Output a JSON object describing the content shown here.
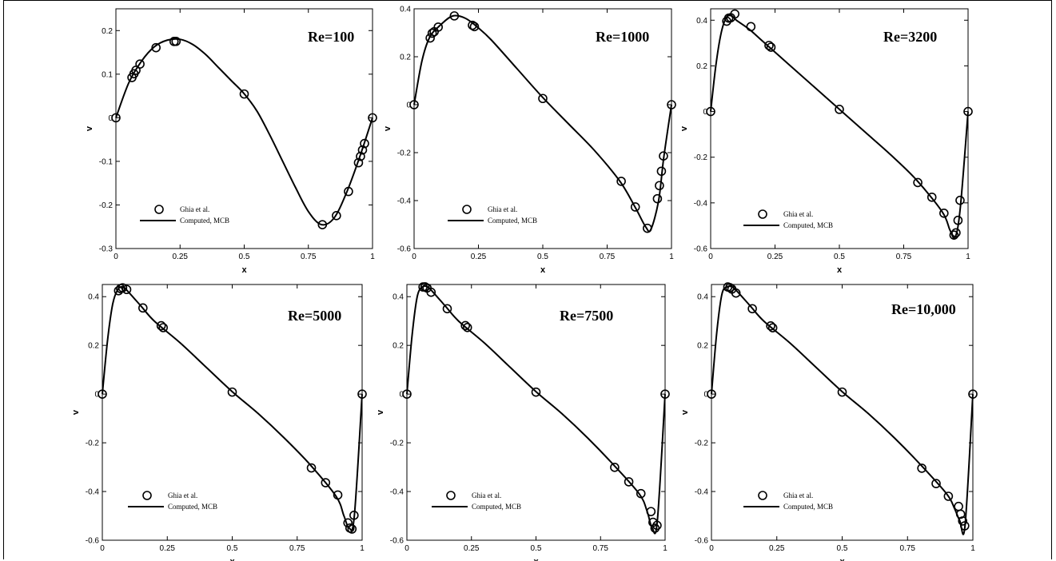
{
  "chart_data": [
    {
      "type": "line",
      "title": "Re=100",
      "xlabel": "x",
      "ylabel": "v",
      "xlim": [
        0,
        1
      ],
      "ylim": [
        -0.3,
        0.25
      ],
      "xticks": [
        0,
        0.25,
        0.5,
        0.75,
        1
      ],
      "xtick_labels": [
        "0",
        "0.25",
        "0.5",
        "0.75",
        "1"
      ],
      "yticks": [
        -0.3,
        -0.2,
        -0.1,
        0,
        0.1,
        0.2
      ],
      "ytick_labels": [
        "-0.3",
        "-0.2",
        "-0.1",
        "0",
        "0.1",
        "0.2"
      ],
      "legend": [
        "Ghia et al.",
        "Computed, MCB"
      ],
      "legend_position": "bottom-left",
      "series": [
        {
          "name": "Ghia et al.",
          "style": "markers",
          "x": [
            0,
            0.0625,
            0.0703,
            0.0781,
            0.0938,
            0.1563,
            0.2266,
            0.2344,
            0.5,
            0.8047,
            0.8594,
            0.9063,
            0.9453,
            0.9531,
            0.9609,
            0.9688,
            1.0
          ],
          "y": [
            0,
            0.0923,
            0.1009,
            0.1089,
            0.1232,
            0.1608,
            0.1751,
            0.1753,
            0.0545,
            -0.2453,
            -0.2245,
            -0.1691,
            -0.1031,
            -0.0886,
            -0.0739,
            -0.0591,
            0
          ]
        },
        {
          "name": "Computed, MCB",
          "style": "line",
          "x": [
            0,
            0.05,
            0.1,
            0.15,
            0.2,
            0.25,
            0.3,
            0.35,
            0.4,
            0.45,
            0.5,
            0.55,
            0.6,
            0.65,
            0.7,
            0.75,
            0.8,
            0.85,
            0.9,
            0.95,
            1.0
          ],
          "y": [
            0,
            0.08,
            0.13,
            0.163,
            0.178,
            0.18,
            0.168,
            0.145,
            0.115,
            0.085,
            0.055,
            0.015,
            -0.04,
            -0.1,
            -0.16,
            -0.215,
            -0.245,
            -0.23,
            -0.17,
            -0.09,
            0
          ]
        }
      ]
    },
    {
      "type": "line",
      "title": "Re=1000",
      "xlabel": "x",
      "ylabel": "v",
      "xlim": [
        0,
        1
      ],
      "ylim": [
        -0.6,
        0.4
      ],
      "xticks": [
        0,
        0.25,
        0.5,
        0.75,
        1
      ],
      "xtick_labels": [
        "0",
        "0.25",
        "0.5",
        "0.75",
        "1"
      ],
      "yticks": [
        -0.6,
        -0.4,
        -0.2,
        0,
        0.2,
        0.4
      ],
      "ytick_labels": [
        "-0.6",
        "-0.4",
        "-0.2",
        "0",
        "0.2",
        "0.4"
      ],
      "legend": [
        "Ghia et al.",
        "Computed, MCB"
      ],
      "legend_position": "bottom-left",
      "series": [
        {
          "name": "Ghia et al.",
          "style": "markers",
          "x": [
            0,
            0.0625,
            0.0703,
            0.0781,
            0.0938,
            0.1563,
            0.2266,
            0.2344,
            0.5,
            0.8047,
            0.8594,
            0.9063,
            0.9453,
            0.9531,
            0.9609,
            0.9688,
            1.0
          ],
          "y": [
            0,
            0.2781,
            0.2981,
            0.3044,
            0.3237,
            0.3704,
            0.3312,
            0.3257,
            0.0258,
            -0.3197,
            -0.4266,
            -0.5155,
            -0.3922,
            -0.3375,
            -0.2776,
            -0.214,
            0
          ]
        },
        {
          "name": "Computed, MCB",
          "style": "line",
          "x": [
            0,
            0.03,
            0.06,
            0.1,
            0.15,
            0.2,
            0.25,
            0.3,
            0.4,
            0.5,
            0.6,
            0.7,
            0.8,
            0.86,
            0.9,
            0.92,
            0.95,
            0.97,
            1.0
          ],
          "y": [
            0,
            0.18,
            0.28,
            0.33,
            0.37,
            0.36,
            0.32,
            0.27,
            0.15,
            0.03,
            -0.08,
            -0.19,
            -0.32,
            -0.43,
            -0.51,
            -0.52,
            -0.4,
            -0.22,
            0
          ]
        }
      ]
    },
    {
      "type": "line",
      "title": "Re=3200",
      "xlabel": "x",
      "ylabel": "v",
      "xlim": [
        0,
        1
      ],
      "ylim": [
        -0.6,
        0.45
      ],
      "xticks": [
        0,
        0.25,
        0.5,
        0.75,
        1
      ],
      "xtick_labels": [
        "0",
        "0.25",
        "0.5",
        "0.75",
        "1"
      ],
      "yticks": [
        -0.6,
        -0.4,
        -0.2,
        0,
        0.2,
        0.4
      ],
      "ytick_labels": [
        "-0.6",
        "-0.4",
        "-0.2",
        "0",
        "0.2",
        "0.4"
      ],
      "legend": [
        "Ghia et al.",
        "Computed, MCB"
      ],
      "legend_position": "bottom-left",
      "series": [
        {
          "name": "Ghia et al.",
          "style": "markers",
          "x": [
            0,
            0.0625,
            0.0703,
            0.0781,
            0.0938,
            0.1563,
            0.2266,
            0.2344,
            0.5,
            0.8047,
            0.8594,
            0.9063,
            0.9453,
            0.9531,
            0.9609,
            0.9688,
            1.0
          ],
          "y": [
            0,
            0.3956,
            0.4092,
            0.4107,
            0.4272,
            0.3718,
            0.2894,
            0.2817,
            0.0095,
            -0.3111,
            -0.3752,
            -0.4453,
            -0.5411,
            -0.531,
            -0.4765,
            -0.3889,
            0
          ]
        },
        {
          "name": "Computed, MCB",
          "style": "line",
          "x": [
            0,
            0.02,
            0.04,
            0.06,
            0.08,
            0.1,
            0.15,
            0.2,
            0.3,
            0.4,
            0.5,
            0.6,
            0.7,
            0.8,
            0.9,
            0.93,
            0.95,
            0.97,
            1.0
          ],
          "y": [
            0,
            0.2,
            0.34,
            0.41,
            0.42,
            0.4,
            0.36,
            0.31,
            0.21,
            0.11,
            0.01,
            -0.09,
            -0.19,
            -0.3,
            -0.44,
            -0.52,
            -0.55,
            -0.42,
            0
          ]
        }
      ]
    },
    {
      "type": "line",
      "title": "Re=5000",
      "xlabel": "x",
      "ylabel": "v",
      "xlim": [
        0,
        1
      ],
      "ylim": [
        -0.6,
        0.45
      ],
      "xticks": [
        0,
        0.25,
        0.5,
        0.75,
        1
      ],
      "xtick_labels": [
        "0",
        "0.25",
        "0.5",
        "0.75",
        "1"
      ],
      "yticks": [
        -0.6,
        -0.4,
        -0.2,
        0,
        0.2,
        0.4
      ],
      "ytick_labels": [
        "-0.6",
        "-0.4",
        "-0.2",
        "0",
        "0.2",
        "0.4"
      ],
      "legend": [
        "Ghia et al.",
        "Computed, MCB"
      ],
      "legend_position": "bottom-left",
      "series": [
        {
          "name": "Ghia et al.",
          "style": "markers",
          "x": [
            0,
            0.0625,
            0.0703,
            0.0781,
            0.0938,
            0.1563,
            0.2266,
            0.2344,
            0.5,
            0.8047,
            0.8594,
            0.9063,
            0.9453,
            0.9531,
            0.9609,
            0.9688,
            1.0
          ],
          "y": [
            0,
            0.4245,
            0.4333,
            0.4365,
            0.4295,
            0.3537,
            0.2807,
            0.2728,
            0.0083,
            -0.3031,
            -0.3638,
            -0.4143,
            -0.5288,
            -0.55,
            -0.554,
            -0.4977,
            0
          ]
        },
        {
          "name": "Computed, MCB",
          "style": "line",
          "x": [
            0,
            0.02,
            0.04,
            0.06,
            0.08,
            0.1,
            0.15,
            0.2,
            0.3,
            0.4,
            0.5,
            0.6,
            0.7,
            0.8,
            0.9,
            0.93,
            0.95,
            0.97,
            1.0
          ],
          "y": [
            0,
            0.22,
            0.37,
            0.43,
            0.44,
            0.42,
            0.36,
            0.3,
            0.21,
            0.11,
            0.01,
            -0.08,
            -0.18,
            -0.29,
            -0.42,
            -0.5,
            -0.55,
            -0.5,
            0
          ]
        }
      ]
    },
    {
      "type": "line",
      "title": "Re=7500",
      "xlabel": "x",
      "ylabel": "v",
      "xlim": [
        0,
        1
      ],
      "ylim": [
        -0.6,
        0.45
      ],
      "xticks": [
        0,
        0.25,
        0.5,
        0.75,
        1
      ],
      "xtick_labels": [
        "0",
        "0.25",
        "0.5",
        "0.75",
        "1"
      ],
      "yticks": [
        -0.6,
        -0.4,
        -0.2,
        0,
        0.2,
        0.4
      ],
      "ytick_labels": [
        "-0.6",
        "-0.4",
        "-0.2",
        "0",
        "0.2",
        "0.4"
      ],
      "legend": [
        "Ghia et al.",
        "Computed, MCB"
      ],
      "legend_position": "bottom-left",
      "series": [
        {
          "name": "Ghia et al.",
          "style": "markers",
          "x": [
            0,
            0.0625,
            0.0703,
            0.0781,
            0.0938,
            0.1563,
            0.2266,
            0.2344,
            0.5,
            0.8047,
            0.8594,
            0.9063,
            0.9453,
            0.9531,
            0.9609,
            0.9688,
            1.0
          ],
          "y": [
            0,
            0.4398,
            0.4403,
            0.4356,
            0.4182,
            0.3506,
            0.2812,
            0.2735,
            0.0082,
            -0.3008,
            -0.3601,
            -0.4085,
            -0.4823,
            -0.5265,
            -0.5505,
            -0.5391,
            0
          ]
        },
        {
          "name": "Computed, MCB",
          "style": "line",
          "x": [
            0,
            0.02,
            0.04,
            0.06,
            0.08,
            0.1,
            0.15,
            0.2,
            0.3,
            0.4,
            0.5,
            0.6,
            0.7,
            0.8,
            0.9,
            0.93,
            0.95,
            0.97,
            1.0
          ],
          "y": [
            0,
            0.24,
            0.4,
            0.44,
            0.44,
            0.42,
            0.36,
            0.3,
            0.21,
            0.11,
            0.01,
            -0.08,
            -0.18,
            -0.29,
            -0.41,
            -0.48,
            -0.55,
            -0.52,
            0
          ]
        }
      ]
    },
    {
      "type": "line",
      "title": "Re=10,000",
      "xlabel": "x",
      "ylabel": "v",
      "xlim": [
        0,
        1
      ],
      "ylim": [
        -0.6,
        0.45
      ],
      "xticks": [
        0,
        0.25,
        0.5,
        0.75,
        1
      ],
      "xtick_labels": [
        "0",
        "0.25",
        "0.5",
        "0.75",
        "1"
      ],
      "yticks": [
        -0.6,
        -0.4,
        -0.2,
        0,
        0.2,
        0.4
      ],
      "ytick_labels": [
        "-0.6",
        "-0.4",
        "-0.2",
        "0",
        "0.2",
        "0.4"
      ],
      "legend": [
        "Ghia et al.",
        "Computed, MCB"
      ],
      "legend_position": "bottom-left",
      "series": [
        {
          "name": "Ghia et al.",
          "style": "markers",
          "x": [
            0,
            0.0625,
            0.0703,
            0.0781,
            0.0938,
            0.1563,
            0.2266,
            0.2344,
            0.5,
            0.8047,
            0.8594,
            0.9063,
            0.9453,
            0.9531,
            0.9609,
            0.9688,
            1.0
          ],
          "y": [
            0,
            0.4398,
            0.4373,
            0.4312,
            0.4149,
            0.3507,
            0.28,
            0.2722,
            0.0083,
            -0.3044,
            -0.3674,
            -0.4195,
            -0.4613,
            -0.493,
            -0.521,
            -0.541,
            0
          ]
        },
        {
          "name": "Computed, MCB",
          "style": "line",
          "x": [
            0,
            0.02,
            0.04,
            0.06,
            0.08,
            0.1,
            0.15,
            0.2,
            0.3,
            0.4,
            0.5,
            0.6,
            0.7,
            0.8,
            0.9,
            0.93,
            0.95,
            0.97,
            1.0
          ],
          "y": [
            0,
            0.25,
            0.41,
            0.44,
            0.44,
            0.42,
            0.36,
            0.3,
            0.21,
            0.11,
            0.01,
            -0.08,
            -0.18,
            -0.29,
            -0.41,
            -0.47,
            -0.52,
            -0.54,
            0
          ]
        }
      ]
    }
  ]
}
